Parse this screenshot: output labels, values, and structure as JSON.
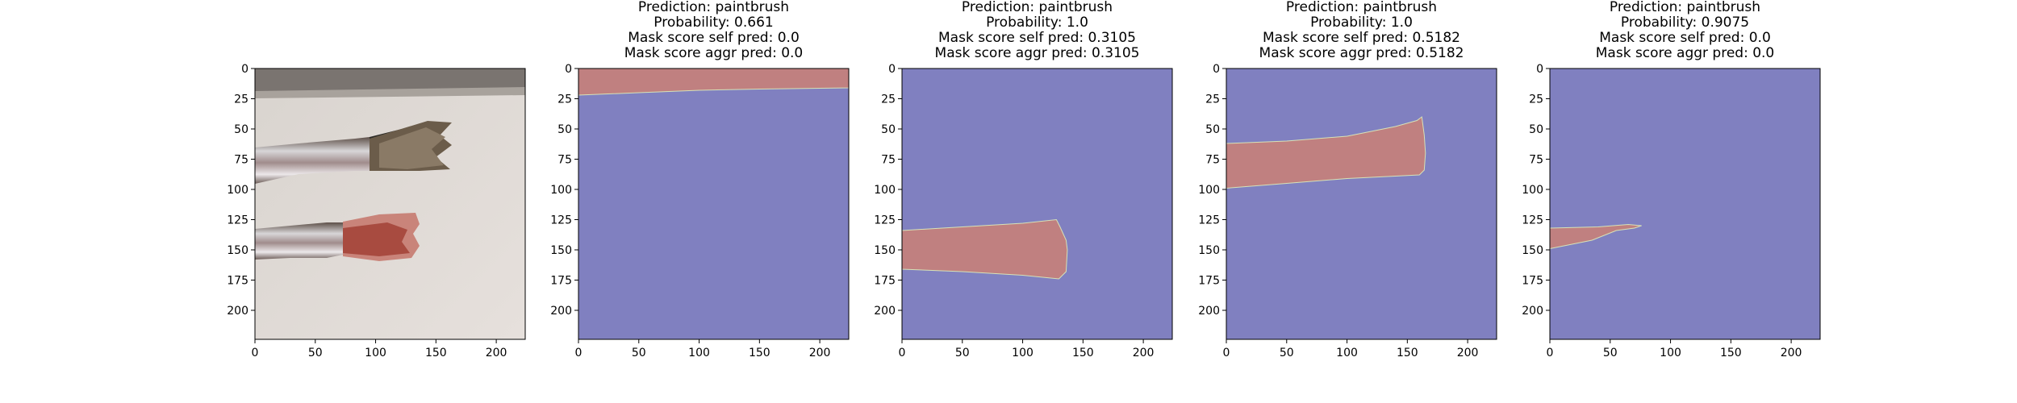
{
  "chart_data": [
    {
      "type": "image",
      "content": "photo of two paint brushes on a white surface",
      "xlim": [
        0,
        224
      ],
      "ylim": [
        224,
        0
      ],
      "xticks": [
        0,
        50,
        100,
        150,
        200
      ],
      "yticks": [
        0,
        25,
        50,
        75,
        100,
        125,
        150,
        175,
        200
      ],
      "title_lines": []
    },
    {
      "type": "heatmap",
      "xlim": [
        0,
        224
      ],
      "ylim": [
        224,
        0
      ],
      "xticks": [
        0,
        50,
        100,
        150,
        200
      ],
      "yticks": [
        0,
        25,
        50,
        75,
        100,
        125,
        150,
        175,
        200
      ],
      "title_lines": [
        "Prediction: paintbrush",
        "Probability: 0.661",
        "Mask score self pred: 0.0",
        "Mask score aggr pred: 0.0"
      ],
      "mask_polygon": [
        [
          0,
          0
        ],
        [
          224,
          0
        ],
        [
          224,
          16
        ],
        [
          150,
          17
        ],
        [
          100,
          18
        ],
        [
          50,
          20
        ],
        [
          0,
          22
        ]
      ]
    },
    {
      "type": "heatmap",
      "xlim": [
        0,
        224
      ],
      "ylim": [
        224,
        0
      ],
      "xticks": [
        0,
        50,
        100,
        150,
        200
      ],
      "yticks": [
        0,
        25,
        50,
        75,
        100,
        125,
        150,
        175,
        200
      ],
      "title_lines": [
        "Prediction: paintbrush",
        "Probability: 1.0",
        "Mask score self pred: 0.3105",
        "Mask score aggr pred: 0.3105"
      ],
      "mask_polygon": [
        [
          0,
          134
        ],
        [
          50,
          131
        ],
        [
          100,
          128
        ],
        [
          128,
          125
        ],
        [
          131,
          131
        ],
        [
          136,
          142
        ],
        [
          137,
          150
        ],
        [
          136,
          168
        ],
        [
          130,
          174
        ],
        [
          100,
          171
        ],
        [
          50,
          168
        ],
        [
          0,
          166
        ]
      ]
    },
    {
      "type": "heatmap",
      "xlim": [
        0,
        224
      ],
      "ylim": [
        224,
        0
      ],
      "xticks": [
        0,
        50,
        100,
        150,
        200
      ],
      "yticks": [
        0,
        25,
        50,
        75,
        100,
        125,
        150,
        175,
        200
      ],
      "title_lines": [
        "Prediction: paintbrush",
        "Probability: 1.0",
        "Mask score self pred: 0.5182",
        "Mask score aggr pred: 0.5182"
      ],
      "mask_polygon": [
        [
          0,
          62
        ],
        [
          50,
          60
        ],
        [
          100,
          56
        ],
        [
          140,
          48
        ],
        [
          158,
          43
        ],
        [
          162,
          40
        ],
        [
          164,
          55
        ],
        [
          165,
          70
        ],
        [
          164,
          84
        ],
        [
          160,
          88
        ],
        [
          100,
          91
        ],
        [
          50,
          95
        ],
        [
          0,
          99
        ]
      ]
    },
    {
      "type": "heatmap",
      "xlim": [
        0,
        224
      ],
      "ylim": [
        224,
        0
      ],
      "xticks": [
        0,
        50,
        100,
        150,
        200
      ],
      "yticks": [
        0,
        25,
        50,
        75,
        100,
        125,
        150,
        175,
        200
      ],
      "title_lines": [
        "Prediction: paintbrush",
        "Probability: 0.9075",
        "Mask score self pred: 0.0",
        "Mask score aggr pred: 0.0"
      ],
      "mask_polygon": [
        [
          0,
          132
        ],
        [
          40,
          131
        ],
        [
          65,
          129
        ],
        [
          76,
          130
        ],
        [
          70,
          132
        ],
        [
          55,
          134
        ],
        [
          45,
          138
        ],
        [
          35,
          142
        ],
        [
          20,
          145
        ],
        [
          0,
          149
        ]
      ]
    }
  ],
  "colors": {
    "background": "#8080c0",
    "mask": "#c08080",
    "axis": "#000000"
  }
}
